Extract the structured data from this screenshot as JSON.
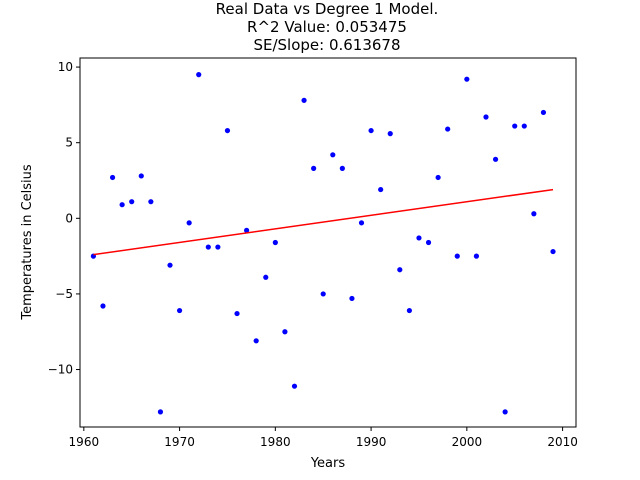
{
  "chart_data": {
    "type": "scatter",
    "title_lines": [
      "Real Data vs Degree 1 Model.",
      "R^2 Value: 0.053475",
      "SE/Slope: 0.613678"
    ],
    "xlabel": "Years",
    "ylabel": "Temperatures in Celsius",
    "xlim": [
      1959.6,
      2011.4
    ],
    "ylim": [
      -13.8,
      10.6
    ],
    "xticks": [
      1960,
      1970,
      1980,
      1990,
      2000,
      2010
    ],
    "xtick_labels": [
      "1960",
      "1970",
      "1980",
      "1990",
      "2000",
      "2010"
    ],
    "yticks": [
      -10,
      -5,
      0,
      5,
      10
    ],
    "ytick_labels": [
      "−10",
      "−5",
      "0",
      "5",
      "10"
    ],
    "grid": false,
    "series": [
      {
        "name": "Real Data",
        "kind": "points",
        "color": "#0000ff",
        "x": [
          1961,
          1962,
          1963,
          1964,
          1965,
          1966,
          1967,
          1968,
          1969,
          1970,
          1971,
          1972,
          1973,
          1974,
          1975,
          1976,
          1977,
          1978,
          1979,
          1980,
          1981,
          1982,
          1983,
          1984,
          1985,
          1986,
          1987,
          1988,
          1989,
          1990,
          1991,
          1992,
          1993,
          1994,
          1995,
          1996,
          1997,
          1998,
          1999,
          2000,
          2001,
          2002,
          2003,
          2004,
          2005,
          2006,
          2007,
          2008,
          2009
        ],
        "y": [
          -2.5,
          -5.8,
          2.7,
          0.9,
          1.1,
          2.8,
          1.1,
          -12.8,
          -3.1,
          -6.1,
          -0.3,
          9.5,
          -1.9,
          -1.9,
          5.8,
          -6.3,
          -0.8,
          -8.1,
          -3.9,
          -1.6,
          -7.5,
          -11.1,
          7.8,
          3.3,
          -5.0,
          4.2,
          3.3,
          -5.3,
          -0.3,
          5.8,
          1.9,
          5.6,
          -3.4,
          -6.1,
          -1.3,
          -1.6,
          2.7,
          5.9,
          -2.5,
          9.2,
          -2.5,
          6.7,
          3.9,
          -12.8,
          6.1,
          6.1,
          0.3,
          7.0,
          -2.2
        ]
      },
      {
        "name": "Degree 1 Model",
        "kind": "line",
        "color": "#ff0000",
        "x": [
          1961,
          2009
        ],
        "y": [
          -2.4,
          1.9
        ]
      }
    ]
  }
}
